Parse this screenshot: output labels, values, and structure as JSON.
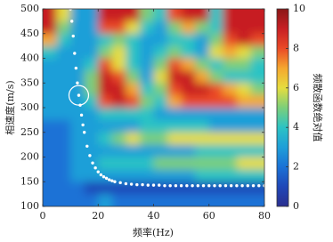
{
  "chart_data": {
    "type": "heatmap",
    "x_label": "频率(Hz)",
    "y_label": "相速度(m/s)",
    "colorbar_label": "频散函数绝对值",
    "x": [
      2.5,
      7.5,
      12.5,
      17.5,
      22.5,
      27.5,
      32.5,
      37.5,
      42.5,
      47.5,
      52.5,
      57.5,
      62.5,
      67.5,
      72.5,
      77.5
    ],
    "y": [
      487.5,
      462.5,
      437.5,
      412.5,
      387.5,
      362.5,
      337.5,
      312.5,
      287.5,
      262.5,
      237.5,
      212.5,
      187.5,
      162.5,
      137.5,
      112.5
    ],
    "z": [
      [
        9,
        6,
        3,
        3,
        9,
        9,
        9,
        5,
        4,
        8,
        9,
        9,
        4,
        9,
        9,
        9
      ],
      [
        9,
        5,
        3,
        3,
        8,
        8,
        6,
        4,
        3,
        5,
        7,
        5,
        4,
        9,
        9,
        9
      ],
      [
        7,
        4,
        3,
        3,
        4,
        5,
        4,
        3,
        3,
        4,
        4,
        3,
        5,
        8,
        9,
        8
      ],
      [
        4,
        3,
        3,
        3,
        5,
        6,
        4,
        3,
        4,
        5,
        4,
        3,
        6,
        7,
        6,
        5
      ],
      [
        3,
        3,
        3,
        4,
        8,
        6,
        4,
        3,
        5,
        8,
        7,
        5,
        4,
        5,
        5,
        4
      ],
      [
        3,
        3,
        3,
        5,
        9,
        8,
        5,
        3,
        6,
        9,
        9,
        7,
        5,
        4,
        4,
        4
      ],
      [
        3,
        3,
        3,
        5,
        9,
        9,
        7,
        4,
        5,
        8,
        9,
        9,
        8,
        7,
        6,
        5
      ],
      [
        3,
        3,
        3,
        4,
        8,
        9,
        8,
        5,
        4,
        7,
        8,
        8,
        8,
        8,
        7,
        7
      ],
      [
        3,
        3,
        3,
        3,
        4,
        4,
        4,
        4,
        3,
        3,
        3,
        3,
        3,
        3,
        3,
        3
      ],
      [
        2,
        2,
        3,
        3,
        3,
        3,
        3,
        4,
        4,
        4,
        4,
        4,
        3,
        3,
        3,
        3
      ],
      [
        2,
        2,
        3,
        3,
        4,
        5,
        6,
        5,
        5,
        6,
        6,
        6,
        6,
        6,
        6,
        6
      ],
      [
        2,
        2,
        3,
        3,
        3,
        3,
        3,
        3,
        3,
        3,
        3,
        4,
        4,
        4,
        4,
        4
      ],
      [
        2,
        2,
        3,
        3,
        4,
        4,
        4,
        4,
        5,
        5,
        5,
        5,
        5,
        5,
        6,
        6
      ],
      [
        2,
        2,
        3,
        3,
        3,
        3,
        3,
        3,
        3,
        3,
        3,
        4,
        4,
        4,
        4,
        4
      ],
      [
        2,
        2,
        2,
        1,
        1,
        1,
        1,
        1,
        1,
        1,
        1,
        1,
        1,
        1,
        1,
        1
      ],
      [
        2,
        2,
        2,
        2,
        3,
        2,
        2,
        2,
        2,
        2,
        2,
        2,
        2,
        2,
        2,
        2
      ]
    ],
    "colormap": [
      "#2a2f8f",
      "#1f47b8",
      "#1a72d6",
      "#1f9fd8",
      "#2cc3c4",
      "#7ccf7a",
      "#e6dd3e",
      "#f5a72f",
      "#ea4a27",
      "#c71f24",
      "#8b1616"
    ],
    "zlim": [
      0,
      10
    ],
    "zticks": [
      0,
      2,
      4,
      6,
      8,
      10
    ],
    "xlim": [
      0,
      80
    ],
    "xticks": [
      0,
      20,
      40,
      60,
      80
    ],
    "ylim": [
      100,
      500
    ],
    "yticks": [
      100,
      150,
      200,
      250,
      300,
      350,
      400,
      450,
      500
    ],
    "points": {
      "color": "#ffffff",
      "x": [
        10,
        10.5,
        11,
        11.5,
        12,
        12.5,
        13,
        13.5,
        14,
        14.5,
        15,
        16,
        17,
        18,
        19,
        20,
        21,
        22,
        23,
        24,
        25,
        26,
        28,
        30,
        32,
        34,
        36,
        38,
        40,
        42,
        44,
        46,
        48,
        50,
        52,
        54,
        56,
        58,
        60,
        62,
        64,
        66,
        68,
        70,
        72,
        74,
        76,
        78,
        80
      ],
      "y": [
        500,
        475,
        445,
        410,
        380,
        350,
        325,
        305,
        285,
        265,
        250,
        222,
        203,
        188,
        178,
        170,
        164,
        160,
        157,
        154,
        152,
        150,
        148,
        146,
        145,
        144,
        144,
        143,
        143,
        143,
        142,
        142,
        142,
        142,
        142,
        142,
        142,
        142,
        142,
        142,
        142,
        142,
        142,
        142,
        142,
        142,
        142,
        142,
        142
      ]
    },
    "highlight": [
      13,
      325
    ]
  }
}
